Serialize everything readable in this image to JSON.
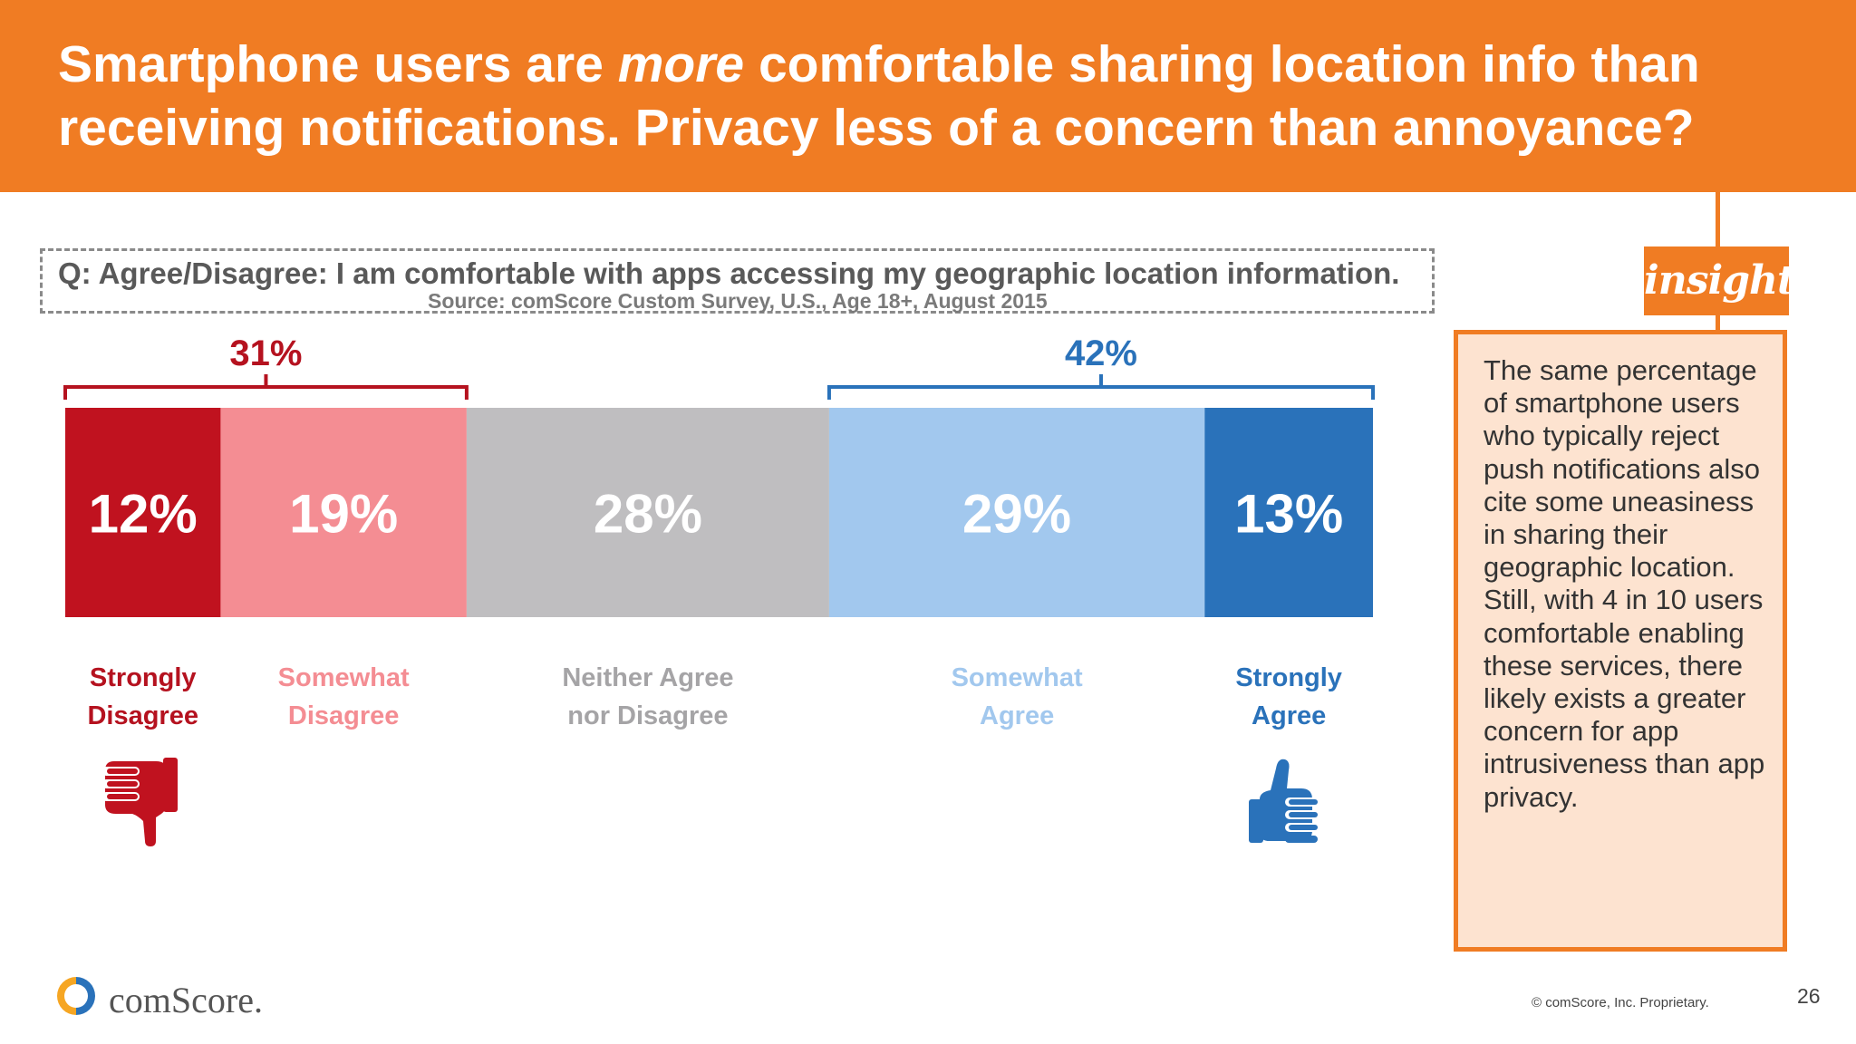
{
  "header": {
    "title_pre": "Smartphone users are ",
    "title_em": "more",
    "title_post": " comfortable sharing location info than receiving notifications. Privacy less of a concern than annoyance?",
    "background_color": "#f07c23"
  },
  "question": {
    "text": "Q: Agree/Disagree: I am comfortable with apps accessing my geographic location information.",
    "source": "Source: comScore Custom Survey, U.S., Age 18+, August 2015"
  },
  "chart_data": {
    "type": "bar",
    "orientation": "horizontal-stacked-100",
    "categories": [
      "Strongly Disagree",
      "Somewhat Disagree",
      "Neither Agree nor Disagree",
      "Somewhat Agree",
      "Strongly Agree"
    ],
    "category_lines": [
      [
        "Strongly",
        "Disagree"
      ],
      [
        "Somewhat",
        "Disagree"
      ],
      [
        "Neither Agree",
        "nor Disagree"
      ],
      [
        "Somewhat",
        "Agree"
      ],
      [
        "Strongly",
        "Agree"
      ]
    ],
    "values": [
      12,
      19,
      28,
      29,
      13
    ],
    "value_labels": [
      "12%",
      "19%",
      "28%",
      "29%",
      "13%"
    ],
    "colors": [
      "#c0121f",
      "#f48d93",
      "#bfbec0",
      "#a2c8ee",
      "#2a72ba"
    ],
    "label_colors": [
      "#b5121f",
      "#f48d93",
      "#a5a4a6",
      "#a2c8ee",
      "#2a72ba"
    ],
    "groups": [
      {
        "label": "31%",
        "value": 31,
        "from": 0,
        "to": 1,
        "color": "#b5121f",
        "icon": "thumbs-down-icon"
      },
      {
        "label": "42%",
        "value": 42,
        "from": 3,
        "to": 4,
        "color": "#2a72ba",
        "icon": "thumbs-up-icon"
      }
    ]
  },
  "insight": {
    "tag": "insight",
    "text": "The same percentage of smartphone users who typically reject push notifications also cite some uneasiness in sharing their geographic location. Still, with 4 in 10 users comfortable enabling these services, there likely exists a greater concern for app intrusiveness than app privacy."
  },
  "footer": {
    "logo_text": "comScore.",
    "copyright": "© comScore, Inc. Proprietary.",
    "page_number": "26"
  }
}
